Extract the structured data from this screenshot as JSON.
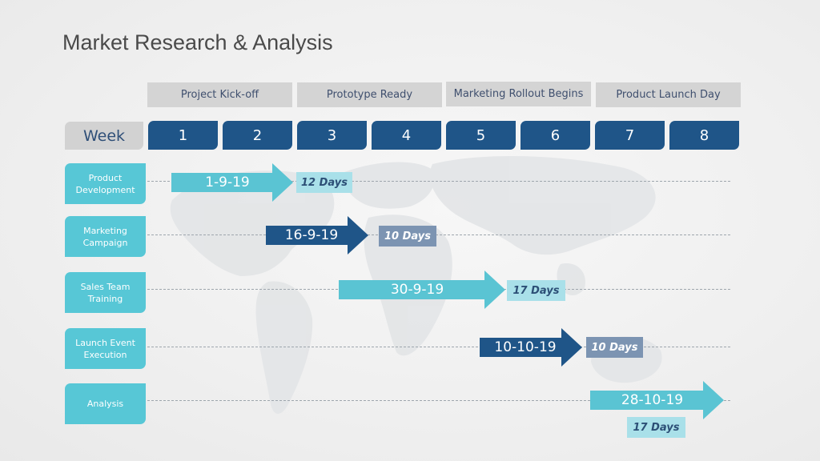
{
  "title": "Market Research & Analysis",
  "milestones": [
    "Project Kick-off",
    "Prototype Ready",
    "Marketing Rollout Begins",
    "Product Launch Day"
  ],
  "week_label": "Week",
  "weeks": [
    "1",
    "2",
    "3",
    "4",
    "5",
    "6",
    "7",
    "8"
  ],
  "rows": [
    {
      "label": "Product Development",
      "date": "1-9-19",
      "duration": "12 Days",
      "style": "light"
    },
    {
      "label": "Marketing Campaign",
      "date": "16-9-19",
      "duration": "10 Days",
      "style": "dark"
    },
    {
      "label": "Sales Team Training",
      "date": "30-9-19",
      "duration": "17 Days",
      "style": "light"
    },
    {
      "label": "Launch Event Execution",
      "date": "10-10-19",
      "duration": "10 Days",
      "style": "dark"
    },
    {
      "label": "Analysis",
      "date": "28-10-19",
      "duration": "17 Days",
      "style": "light"
    }
  ],
  "colors": {
    "dark_blue": "#1f5588",
    "light_teal": "#57c7d6",
    "milestone_gray": "#d4d4d4"
  }
}
